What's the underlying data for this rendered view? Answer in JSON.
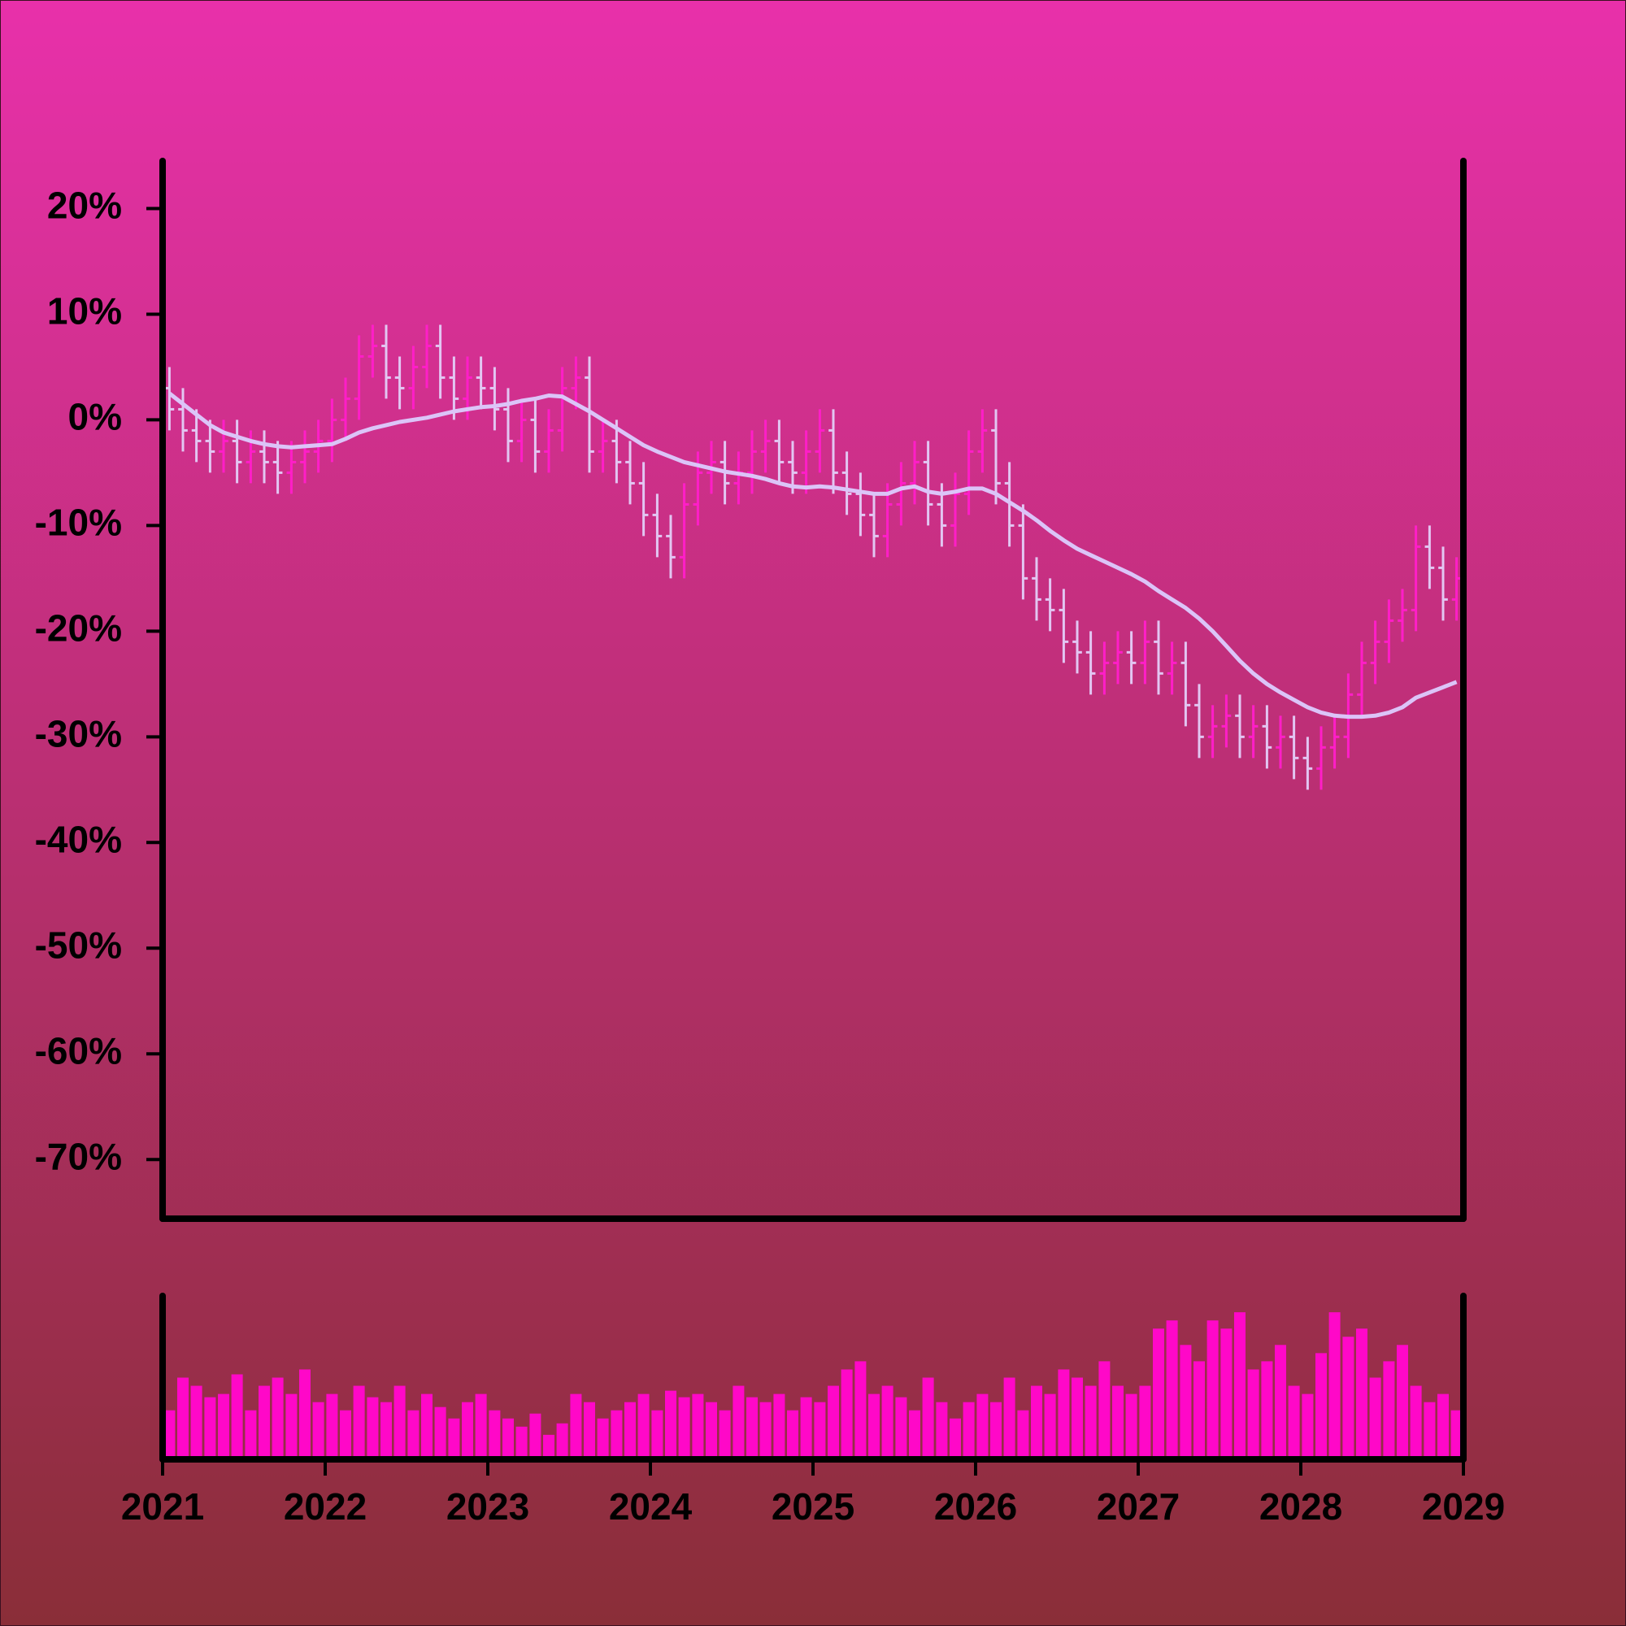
{
  "chart_data": {
    "type": "ohlc",
    "x": [
      2021.042,
      2021.125,
      2021.208,
      2021.292,
      2021.375,
      2021.458,
      2021.542,
      2021.625,
      2021.708,
      2021.792,
      2021.875,
      2021.958,
      2022.042,
      2022.125,
      2022.208,
      2022.292,
      2022.375,
      2022.458,
      2022.542,
      2022.625,
      2022.708,
      2022.792,
      2022.875,
      2022.958,
      2023.042,
      2023.125,
      2023.208,
      2023.292,
      2023.375,
      2023.458,
      2023.542,
      2023.625,
      2023.708,
      2023.792,
      2023.875,
      2023.958,
      2024.042,
      2024.125,
      2024.208,
      2024.292,
      2024.375,
      2024.458,
      2024.542,
      2024.625,
      2024.708,
      2024.792,
      2024.875,
      2024.958,
      2025.042,
      2025.125,
      2025.208,
      2025.292,
      2025.375,
      2025.458,
      2025.542,
      2025.625,
      2025.708,
      2025.792,
      2025.875,
      2025.958,
      2026.042,
      2026.125,
      2026.208,
      2026.292,
      2026.375,
      2026.458,
      2026.542,
      2026.625,
      2026.708,
      2026.792,
      2026.875,
      2026.958,
      2027.042,
      2027.125,
      2027.208,
      2027.292,
      2027.375,
      2027.458,
      2027.542,
      2027.625,
      2027.708,
      2027.792,
      2027.875,
      2027.958,
      2028.042,
      2028.125,
      2028.208,
      2028.292,
      2028.375,
      2028.458,
      2028.542,
      2028.625,
      2028.708,
      2028.792,
      2028.875,
      2028.958
    ],
    "open": [
      3,
      1,
      -1,
      -2,
      -3,
      -2,
      -4,
      -3,
      -4,
      -5,
      -4,
      -3,
      -2,
      0,
      2,
      6,
      7,
      4,
      3,
      5,
      7,
      4,
      2,
      4,
      3,
      1,
      -2,
      0,
      -3,
      -1,
      3,
      4,
      -3,
      -2,
      -4,
      -6,
      -9,
      -11,
      -13,
      -8,
      -5,
      -4,
      -6,
      -5,
      -3,
      -2,
      -4,
      -5,
      -3,
      -1,
      -5,
      -7,
      -9,
      -11,
      -8,
      -6,
      -4,
      -8,
      -10,
      -7,
      -3,
      -1,
      -6,
      -10,
      -15,
      -17,
      -18,
      -21,
      -22,
      -24,
      -23,
      -22,
      -23,
      -21,
      -24,
      -23,
      -27,
      -30,
      -29,
      -28,
      -30,
      -29,
      -31,
      -30,
      -32,
      -33,
      -31,
      -30,
      -26,
      -23,
      -21,
      -19,
      -18,
      -12,
      -14,
      -17
    ],
    "high": [
      5,
      3,
      1,
      0,
      0,
      0,
      -1,
      -1,
      -2,
      -2,
      -1,
      0,
      2,
      4,
      8,
      9,
      9,
      6,
      7,
      9,
      9,
      6,
      6,
      6,
      5,
      3,
      2,
      2,
      1,
      5,
      6,
      6,
      0,
      0,
      -2,
      -4,
      -7,
      -9,
      -6,
      -3,
      -2,
      -2,
      -3,
      -1,
      0,
      0,
      -2,
      -1,
      1,
      1,
      -3,
      -5,
      -7,
      -6,
      -4,
      -2,
      -2,
      -6,
      -5,
      -1,
      1,
      1,
      -4,
      -8,
      -13,
      -15,
      -16,
      -19,
      -20,
      -21,
      -20,
      -20,
      -19,
      -19,
      -21,
      -21,
      -25,
      -27,
      -26,
      -26,
      -27,
      -27,
      -28,
      -28,
      -30,
      -29,
      -28,
      -24,
      -21,
      -19,
      -17,
      -16,
      -10,
      -10,
      -12,
      -13
    ],
    "low": [
      -1,
      -3,
      -4,
      -5,
      -5,
      -6,
      -6,
      -6,
      -7,
      -7,
      -6,
      -5,
      -4,
      -2,
      0,
      4,
      2,
      1,
      1,
      3,
      2,
      0,
      0,
      1,
      -1,
      -4,
      -4,
      -5,
      -5,
      -3,
      1,
      -5,
      -5,
      -6,
      -8,
      -11,
      -13,
      -15,
      -15,
      -10,
      -7,
      -8,
      -8,
      -7,
      -5,
      -6,
      -7,
      -7,
      -5,
      -7,
      -9,
      -11,
      -13,
      -13,
      -10,
      -8,
      -10,
      -12,
      -12,
      -9,
      -5,
      -8,
      -12,
      -17,
      -19,
      -20,
      -23,
      -24,
      -26,
      -26,
      -25,
      -25,
      -25,
      -26,
      -26,
      -29,
      -32,
      -32,
      -31,
      -32,
      -32,
      -33,
      -33,
      -34,
      -35,
      -35,
      -33,
      -32,
      -28,
      -25,
      -23,
      -21,
      -20,
      -16,
      -19,
      -19
    ],
    "close": [
      1,
      -1,
      -2,
      -3,
      -2,
      -4,
      -3,
      -4,
      -5,
      -4,
      -3,
      -2,
      0,
      2,
      6,
      7,
      4,
      3,
      5,
      7,
      4,
      2,
      4,
      3,
      1,
      -2,
      0,
      -3,
      -1,
      3,
      4,
      -3,
      -2,
      -4,
      -6,
      -9,
      -11,
      -13,
      -8,
      -5,
      -4,
      -6,
      -5,
      -3,
      -2,
      -4,
      -5,
      -3,
      -1,
      -5,
      -7,
      -9,
      -11,
      -8,
      -6,
      -4,
      -8,
      -10,
      -7,
      -3,
      -1,
      -6,
      -10,
      -15,
      -17,
      -18,
      -21,
      -22,
      -24,
      -23,
      -22,
      -23,
      -21,
      -24,
      -23,
      -27,
      -30,
      -29,
      -28,
      -30,
      -29,
      -31,
      -30,
      -32,
      -33,
      -31,
      -30,
      -26,
      -23,
      -21,
      -19,
      -18,
      -12,
      -14,
      -17,
      -15
    ],
    "up_color": "#ff1ec8",
    "down_color": "#e2c6f2",
    "moving_average": {
      "color": "#dcc4f8",
      "values": [
        2.5,
        1.5,
        0.5,
        -0.5,
        -1.2,
        -1.6,
        -2,
        -2.3,
        -2.5,
        -2.6,
        -2.5,
        -2.4,
        -2.3,
        -1.8,
        -1.2,
        -0.8,
        -0.5,
        -0.2,
        0,
        0.2,
        0.5,
        0.8,
        1,
        1.2,
        1.3,
        1.5,
        1.8,
        2,
        2.3,
        2.2,
        1.5,
        0.8,
        0,
        -0.8,
        -1.6,
        -2.4,
        -3,
        -3.5,
        -4,
        -4.3,
        -4.6,
        -4.9,
        -5.1,
        -5.3,
        -5.6,
        -6,
        -6.3,
        -6.4,
        -6.3,
        -6.4,
        -6.6,
        -6.8,
        -7,
        -7,
        -6.5,
        -6.3,
        -6.8,
        -7,
        -6.8,
        -6.5,
        -6.5,
        -7,
        -7.8,
        -8.6,
        -9.5,
        -10.5,
        -11.4,
        -12.2,
        -12.8,
        -13.4,
        -14,
        -14.6,
        -15.3,
        -16.2,
        -17,
        -17.8,
        -18.8,
        -20,
        -21.4,
        -22.8,
        -24,
        -25,
        -25.8,
        -26.5,
        -27.2,
        -27.7,
        -28,
        -28.1,
        -28.1,
        -28,
        -27.7,
        -27.2,
        -26.3,
        -25.8,
        -25.3,
        -24.8
      ]
    },
    "volume": {
      "color": "#ff08c8",
      "ylim": [
        0,
        100
      ],
      "values": [
        30,
        50,
        45,
        38,
        40,
        52,
        30,
        45,
        50,
        40,
        55,
        35,
        40,
        30,
        45,
        38,
        35,
        45,
        30,
        40,
        32,
        25,
        35,
        40,
        30,
        25,
        20,
        28,
        15,
        22,
        40,
        35,
        25,
        30,
        35,
        40,
        30,
        42,
        38,
        40,
        35,
        30,
        45,
        38,
        35,
        40,
        30,
        38,
        35,
        45,
        55,
        60,
        40,
        45,
        38,
        30,
        50,
        35,
        25,
        35,
        40,
        35,
        50,
        30,
        45,
        40,
        55,
        50,
        45,
        60,
        45,
        40,
        45,
        80,
        85,
        70,
        60,
        85,
        80,
        90,
        55,
        60,
        70,
        45,
        40,
        65,
        90,
        75,
        80,
        50,
        60,
        70,
        45,
        35,
        40,
        30
      ]
    },
    "xlim": [
      2021,
      2029
    ],
    "xticks": [
      2021,
      2022,
      2023,
      2024,
      2025,
      2026,
      2027,
      2028,
      2029
    ],
    "ylim": [
      -75.6,
      24.5
    ],
    "yticks": [
      {
        "value": 20,
        "label": "20%"
      },
      {
        "value": 10,
        "label": "10%"
      },
      {
        "value": 0,
        "label": "0%"
      },
      {
        "value": -10,
        "label": "-10%"
      },
      {
        "value": -20,
        "label": "-20%"
      },
      {
        "value": -30,
        "label": "-30%"
      },
      {
        "value": -40,
        "label": "-40%"
      },
      {
        "value": -50,
        "label": "-50%"
      },
      {
        "value": -60,
        "label": "-60%"
      },
      {
        "value": -70,
        "label": "-70%"
      }
    ]
  }
}
